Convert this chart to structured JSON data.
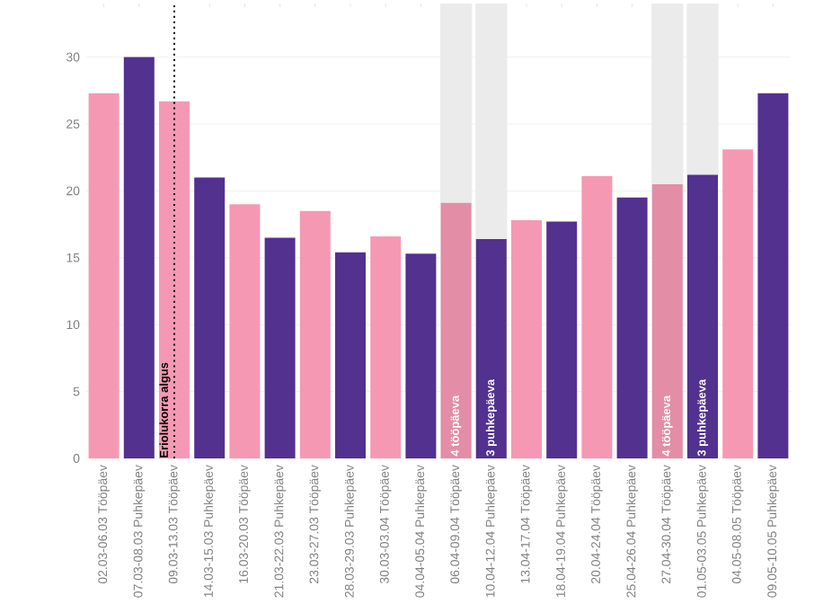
{
  "chart_data": {
    "type": "bar",
    "categories": [
      "02.03-06.03 Tööpäev",
      "07.03-08.03 Puhkepäev",
      "09.03-13.03 Tööpäev",
      "14.03-15.03 Puhkepäev",
      "16.03-20.03 Tööpäev",
      "21.03-22.03 Puhkepäev",
      "23.03-27.03 Tööpäev",
      "28.03-29.03 Puhkepäev",
      "30.03-03.04 Tööpäev",
      "04.04-05.04 Puhkepäev",
      "06.04-09.04 Tööpäev",
      "10.04-12.04 Puhkepäev",
      "13.04-17.04 Tööpäev",
      "18.04-19.04 Puhkepäev",
      "20.04-24.04 Tööpäev",
      "25.04-26.04 Puhkepäev",
      "27.04-30.04 Tööpäev",
      "01.05-03.05 Puhkepäev",
      "04.05-08.05 Tööpäev",
      "09.05-10.05 Puhkepäev"
    ],
    "values": [
      27.3,
      30.0,
      26.7,
      21.0,
      19.0,
      16.5,
      18.5,
      15.4,
      16.6,
      15.3,
      19.1,
      16.4,
      17.8,
      17.7,
      21.1,
      19.5,
      20.5,
      21.2,
      23.1,
      27.3
    ],
    "colors": [
      "#f598b4",
      "#52318f",
      "#f598b4",
      "#52318f",
      "#f598b4",
      "#52318f",
      "#f598b4",
      "#52318f",
      "#f598b4",
      "#52318f",
      "#e38da6",
      "#52318f",
      "#f598b4",
      "#52318f",
      "#f598b4",
      "#52318f",
      "#e38da6",
      "#52318f",
      "#f598b4",
      "#52318f"
    ],
    "ylim": [
      0,
      34
    ],
    "yticks": [
      0,
      5,
      10,
      15,
      20,
      25,
      30
    ],
    "grid": "y",
    "ref_lines": [
      {
        "axis": "x",
        "value": "09.03-13.03 Tööpäev",
        "label": "Eriolukorra algus",
        "line_style": "dotted",
        "color": "#000000"
      }
    ],
    "bands": [
      {
        "axis": "x",
        "from": "06.04-09.04 Tööpäev",
        "to": "06.04-09.04 Tööpäev",
        "label": "4 tööpäeva",
        "color": "#ebebeb"
      },
      {
        "axis": "x",
        "from": "10.04-12.04 Puhkepäev",
        "to": "10.04-12.04 Puhkepäev",
        "label": "3 puhkepäeva",
        "color": "#ebebeb"
      },
      {
        "axis": "x",
        "from": "27.04-30.04 Tööpäev",
        "to": "27.04-30.04 Tööpäev",
        "label": "4 tööpäeva",
        "color": "#ebebeb"
      },
      {
        "axis": "x",
        "from": "01.05-03.05 Puhkepäev",
        "to": "01.05-03.05 Puhkepäev",
        "label": "3 puhkepäeva",
        "color": "#ebebeb"
      }
    ]
  }
}
